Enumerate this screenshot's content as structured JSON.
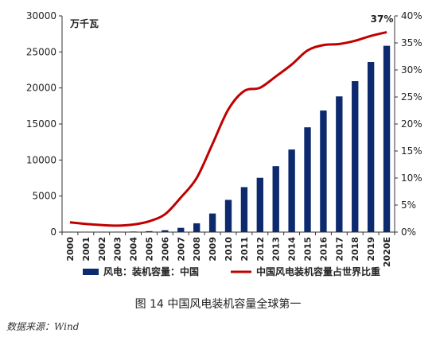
{
  "figure": {
    "caption": "图 14 中国风电装机容量全球第一",
    "source_label": "数据来源",
    "source_value": "Wind"
  },
  "chart_data": {
    "type": "bar",
    "unit_label": "万千瓦",
    "categories": [
      "2000",
      "2001",
      "2002",
      "2003",
      "2004",
      "2005",
      "2006",
      "2007",
      "2008",
      "2009",
      "2010",
      "2011",
      "2012",
      "2013",
      "2014",
      "2015",
      "2016",
      "2017",
      "2018",
      "2019",
      "2020E"
    ],
    "series": [
      {
        "name": "风电：装机容量：中国",
        "type": "bar",
        "axis": "left",
        "color": "#0d2a6e",
        "values": [
          35,
          40,
          47,
          57,
          76,
          126,
          260,
          590,
          1220,
          2580,
          4470,
          6240,
          7530,
          9140,
          11460,
          14540,
          16870,
          18830,
          20950,
          23600,
          25850
        ]
      },
      {
        "name": "中国风电装机容量占世界比重",
        "type": "line",
        "axis": "right",
        "color": "#c00000",
        "values": [
          1.8,
          1.5,
          1.3,
          1.2,
          1.4,
          2.0,
          3.3,
          6.4,
          10.0,
          16.3,
          22.7,
          26.1,
          26.7,
          28.8,
          31.0,
          33.6,
          34.6,
          34.8,
          35.4,
          36.3,
          37.0
        ]
      }
    ],
    "y_left": {
      "min": 0,
      "max": 30000,
      "ticks": [
        0,
        5000,
        10000,
        15000,
        20000,
        25000,
        30000
      ],
      "tick_labels": [
        "0",
        "5000",
        "10000",
        "15000",
        "20000",
        "25000",
        "30000"
      ]
    },
    "y_right": {
      "min": 0,
      "max": 40,
      "ticks": [
        0,
        5,
        10,
        15,
        20,
        25,
        30,
        35,
        40
      ],
      "tick_labels": [
        "0%",
        "5%",
        "10%",
        "15%",
        "20%",
        "25%",
        "30%",
        "35%",
        "40%"
      ]
    },
    "annotation": "37%",
    "grid": false,
    "legend_position": "bottom"
  }
}
